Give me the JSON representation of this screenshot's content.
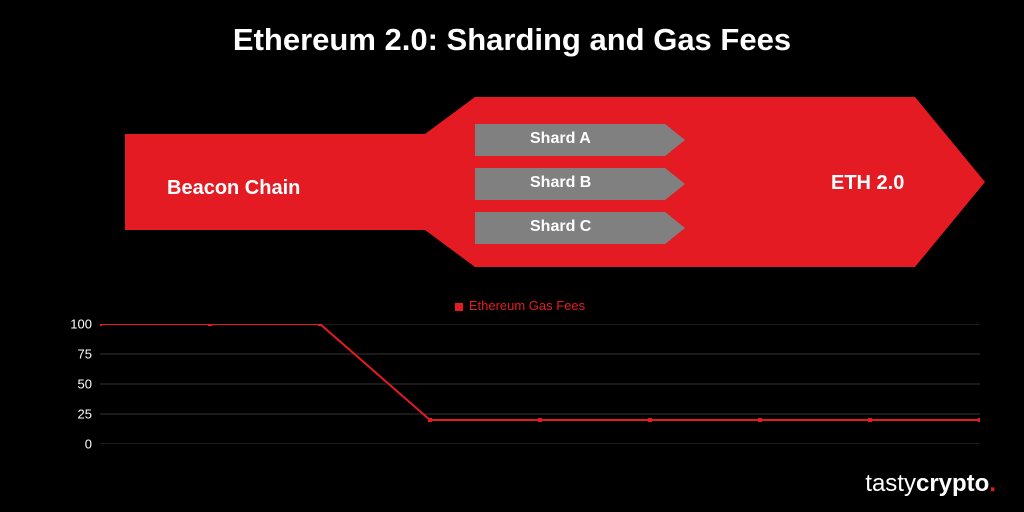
{
  "title": "Ethereum 2.0: Sharding and Gas Fees",
  "colors": {
    "background": "#000000",
    "text": "#ffffff",
    "arrow": "#e41b23",
    "shard_fill": "#808080",
    "line": "#e41b23",
    "grid": "#333333",
    "marker": "#e41b23"
  },
  "arrow": {
    "beacon_label": "Beacon Chain",
    "eth_label": "ETH 2.0",
    "shards": [
      {
        "label": "Shard A"
      },
      {
        "label": "Shard B"
      },
      {
        "label": "Shard C"
      }
    ]
  },
  "chart": {
    "type": "line",
    "legend_label": "Ethereum Gas Fees",
    "ylim": [
      0,
      100
    ],
    "yticks": [
      0,
      25,
      50,
      75,
      100
    ],
    "x_points": [
      0,
      1,
      2,
      3,
      4,
      5,
      6,
      7,
      8
    ],
    "y_values": [
      100,
      100,
      100,
      20,
      20,
      20,
      20,
      20,
      20
    ],
    "line_color": "#e41b23",
    "line_width": 2,
    "marker_size": 4,
    "grid_color": "#333333",
    "label_fontsize": 13
  },
  "logo": {
    "part1": "tasty",
    "part2": "crypto",
    "dot": "."
  }
}
